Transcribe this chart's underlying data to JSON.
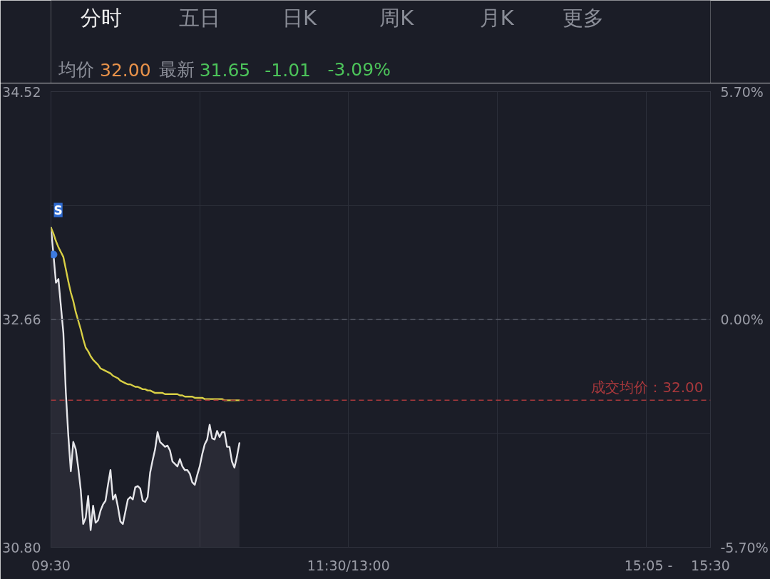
{
  "chart_data": {
    "type": "line",
    "categories": [
      "09:30",
      null,
      null,
      null,
      null,
      null,
      null,
      null,
      null,
      null,
      null,
      null,
      null,
      null,
      null,
      null,
      null,
      null,
      null,
      null,
      null,
      null,
      null,
      null,
      null,
      null,
      null,
      null,
      null,
      null,
      null,
      null,
      null,
      null,
      null,
      null,
      null,
      null,
      null,
      null,
      null,
      null,
      null,
      null,
      null,
      null,
      null,
      null,
      null,
      null,
      null,
      null,
      null,
      null,
      null,
      null,
      null,
      null,
      null,
      null,
      null,
      null,
      null,
      null,
      null,
      null,
      null,
      null,
      null,
      null,
      null,
      null,
      null,
      null,
      null,
      null,
      null,
      null,
      null,
      null,
      null,
      null,
      null,
      null,
      null,
      null,
      null,
      null,
      null,
      null,
      null,
      null,
      null,
      null,
      null,
      null,
      null,
      null,
      null,
      null,
      null,
      null,
      null,
      null,
      null,
      null,
      null,
      null,
      null,
      null,
      null,
      null,
      null,
      null,
      null,
      null,
      null,
      null,
      null,
      null,
      "11:30/13:00",
      null,
      null,
      null,
      null,
      null,
      null,
      null,
      null,
      null,
      null,
      null,
      null,
      null,
      null,
      null,
      null,
      null,
      null,
      null,
      null,
      null,
      null,
      null,
      null,
      null,
      null,
      null,
      null,
      null,
      null,
      null,
      null,
      null,
      null,
      null,
      null,
      null,
      null,
      null,
      null,
      null,
      null,
      null,
      null,
      null,
      null,
      null,
      null,
      null,
      null,
      null,
      null,
      null,
      null,
      null,
      null,
      null,
      null,
      null,
      null,
      null,
      null,
      null,
      null,
      null,
      null,
      null,
      null,
      null,
      null,
      null,
      null,
      null,
      null,
      null,
      null,
      null,
      null,
      null,
      null,
      null,
      null,
      null,
      null,
      null,
      null,
      null,
      null,
      null,
      null,
      null,
      null,
      null,
      null,
      null,
      null,
      null,
      null,
      null,
      null,
      null,
      null,
      null,
      null,
      null,
      null,
      null,
      null,
      null,
      null,
      null,
      null,
      null,
      null,
      null,
      null,
      null,
      null,
      null,
      null,
      "15:05 -",
      null,
      null,
      null,
      null,
      null,
      null,
      null,
      null,
      null,
      null,
      null,
      null,
      null,
      null,
      null,
      null,
      null,
      null,
      null,
      null,
      null,
      null,
      null,
      null,
      "15:30"
    ],
    "series": [
      {
        "type": "area",
        "color": "#e6e6ea",
        "values": [
          33.41,
          33.19,
          32.96,
          32.99,
          32.77,
          32.55,
          32.06,
          31.71,
          31.42,
          31.66,
          31.6,
          31.45,
          31.27,
          30.99,
          31.04,
          31.22,
          30.94,
          31.14,
          31.0,
          31.02,
          31.1,
          31.15,
          31.18,
          31.31,
          31.43,
          31.19,
          31.23,
          31.13,
          31.01,
          30.99,
          31.09,
          31.19,
          31.21,
          31.19,
          31.29,
          31.3,
          31.28,
          31.18,
          31.17,
          31.21,
          31.41,
          31.51,
          31.6,
          31.74,
          31.66,
          31.64,
          31.62,
          31.63,
          31.59,
          31.5,
          31.48,
          31.46,
          31.52,
          31.46,
          31.43,
          31.43,
          31.4,
          31.33,
          31.31,
          31.39,
          31.46,
          31.56,
          31.64,
          31.68,
          31.8,
          31.69,
          31.68,
          31.75,
          31.7,
          31.74,
          31.74,
          31.62,
          31.62,
          31.5,
          31.45,
          31.54,
          31.65,
          null,
          null,
          null,
          null,
          null,
          null,
          null,
          null,
          null,
          null,
          null,
          null,
          null,
          null,
          null,
          null,
          null,
          null,
          null,
          null,
          null,
          null,
          null,
          null,
          null,
          null,
          null,
          null,
          null,
          null,
          null,
          null,
          null,
          null,
          null,
          null,
          null,
          null,
          null,
          null,
          null,
          null,
          null,
          null,
          null,
          null,
          null,
          null,
          null,
          null,
          null,
          null,
          null,
          null,
          null,
          null,
          null,
          null,
          null,
          null,
          null,
          null,
          null,
          null,
          null,
          null,
          null,
          null,
          null,
          null,
          null,
          null,
          null,
          null,
          null,
          null,
          null,
          null,
          null,
          null,
          null,
          null,
          null,
          null,
          null,
          null,
          null,
          null,
          null,
          null,
          null,
          null,
          null,
          null,
          null,
          null,
          null,
          null,
          null,
          null,
          null,
          null,
          null,
          null,
          null,
          null,
          null,
          null,
          null,
          null,
          null,
          null,
          null,
          null,
          null,
          null,
          null,
          null,
          null,
          null,
          null,
          null,
          null,
          null,
          null,
          null,
          null,
          null,
          null,
          null,
          null,
          null,
          null,
          null,
          null,
          null,
          null,
          null,
          null,
          null,
          null,
          null,
          null,
          null,
          null,
          null,
          null,
          null,
          null,
          null,
          null,
          null,
          null,
          null,
          null,
          null,
          null,
          null,
          null,
          null,
          null,
          null,
          null,
          null,
          null,
          null,
          null,
          null,
          null,
          null,
          null,
          null,
          null,
          null,
          null,
          null,
          null,
          null,
          null,
          null,
          null,
          null,
          null,
          null,
          null,
          null,
          null,
          null,
          null,
          null
        ]
      },
      {
        "color": "#d8cf45",
        "values": [
          33.41,
          33.36,
          33.3,
          33.25,
          33.21,
          33.17,
          33.07,
          32.97,
          32.88,
          32.81,
          32.72,
          32.65,
          32.58,
          32.5,
          32.43,
          32.4,
          32.36,
          32.33,
          32.31,
          32.29,
          32.26,
          32.25,
          32.24,
          32.23,
          32.22,
          32.2,
          32.19,
          32.18,
          32.16,
          32.15,
          32.14,
          32.13,
          32.13,
          32.12,
          32.11,
          32.11,
          32.1,
          32.09,
          32.09,
          32.08,
          32.08,
          32.07,
          32.06,
          32.06,
          32.06,
          32.06,
          32.05,
          32.05,
          32.05,
          32.05,
          32.05,
          32.05,
          32.04,
          32.04,
          32.03,
          32.03,
          32.03,
          32.03,
          32.02,
          32.02,
          32.02,
          32.02,
          32.01,
          32.01,
          32.01,
          32.01,
          32.01,
          32.01,
          32.01,
          32.01,
          32.0,
          32.0,
          32.0,
          32.0,
          32.0,
          32.0,
          32.0,
          null,
          null,
          null,
          null,
          null,
          null,
          null,
          null,
          null,
          null,
          null,
          null,
          null,
          null,
          null,
          null,
          null,
          null,
          null,
          null,
          null,
          null,
          null,
          null,
          null,
          null,
          null,
          null,
          null,
          null,
          null,
          null,
          null,
          null,
          null,
          null,
          null,
          null,
          null,
          null,
          null,
          null,
          null,
          null,
          null,
          null,
          null,
          null,
          null,
          null,
          null,
          null,
          null,
          null,
          null,
          null,
          null,
          null,
          null,
          null,
          null,
          null,
          null,
          null,
          null,
          null,
          null,
          null,
          null,
          null,
          null,
          null,
          null,
          null,
          null,
          null,
          null,
          null,
          null,
          null,
          null,
          null,
          null,
          null,
          null,
          null,
          null,
          null,
          null,
          null,
          null,
          null,
          null,
          null,
          null,
          null,
          null,
          null,
          null,
          null,
          null,
          null,
          null,
          null,
          null,
          null,
          null,
          null,
          null,
          null,
          null,
          null,
          null,
          null,
          null,
          null,
          null,
          null,
          null,
          null,
          null,
          null,
          null,
          null,
          null,
          null,
          null,
          null,
          null,
          null,
          null,
          null,
          null,
          null,
          null,
          null,
          null,
          null,
          null,
          null,
          null,
          null,
          null,
          null,
          null,
          null,
          null,
          null,
          null,
          null,
          null,
          null,
          null,
          null,
          null,
          null,
          null,
          null,
          null,
          null,
          null,
          null,
          null,
          null,
          null,
          null,
          null,
          null,
          null,
          null,
          null,
          null,
          null,
          null,
          null,
          null,
          null,
          null,
          null,
          null,
          null,
          null,
          null,
          null,
          null,
          null,
          null,
          null,
          null,
          null
        ]
      },
      {
        "type": "scatter",
        "color": "#3d7be0",
        "values": [
          null,
          33.19,
          null,
          null,
          null,
          null,
          null,
          null,
          null,
          null,
          null,
          null,
          null,
          null,
          null,
          null,
          null,
          null,
          null,
          null,
          null,
          null,
          null,
          null,
          null,
          null,
          null,
          null,
          null,
          null,
          null,
          null,
          null,
          null,
          null,
          null,
          null,
          null,
          null,
          null,
          null,
          null,
          null,
          null,
          null,
          null,
          null,
          null,
          null,
          null,
          null,
          null,
          null,
          null,
          null,
          null,
          null,
          null,
          null,
          null,
          null,
          null,
          null,
          null,
          null,
          null,
          null,
          null,
          null,
          null,
          null,
          null,
          null,
          null,
          null,
          null,
          null,
          null,
          null,
          null,
          null,
          null,
          null,
          null,
          null,
          null,
          null,
          null,
          null,
          null,
          null,
          null,
          null,
          null,
          null,
          null,
          null,
          null,
          null,
          null,
          null,
          null,
          null,
          null,
          null,
          null,
          null,
          null,
          null,
          null,
          null,
          null,
          null,
          null,
          null,
          null,
          null,
          null,
          null,
          null,
          null,
          null,
          null,
          null,
          null,
          null,
          null,
          null,
          null,
          null,
          null,
          null,
          null,
          null,
          null,
          null,
          null,
          null,
          null,
          null,
          null,
          null,
          null,
          null,
          null,
          null,
          null,
          null,
          null,
          null,
          null,
          null,
          null,
          null,
          null,
          null,
          null,
          null,
          null,
          null,
          null,
          null,
          null,
          null,
          null,
          null,
          null,
          null,
          null,
          null,
          null,
          null,
          null,
          null,
          null,
          null,
          null,
          null,
          null,
          null,
          null,
          null,
          null,
          null,
          null,
          null,
          null,
          null,
          null,
          null,
          null,
          null,
          null,
          null,
          null,
          null,
          null,
          null,
          null,
          null,
          null,
          null,
          null,
          null,
          null,
          null,
          null,
          null,
          null,
          null,
          null,
          null,
          null,
          null,
          null,
          null,
          null,
          null,
          null,
          null,
          null,
          null,
          null,
          null,
          null,
          null,
          null,
          null,
          null,
          null,
          null,
          null,
          null,
          null,
          null,
          null,
          null,
          null,
          null,
          null,
          null,
          null,
          null,
          null,
          null,
          null,
          null,
          null,
          null,
          null,
          null,
          null,
          null,
          null,
          null,
          null,
          null,
          null,
          null,
          null,
          null,
          null,
          null,
          null,
          null,
          null,
          null
        ]
      }
    ],
    "ylim": [
      30.8,
      34.52
    ],
    "yticks": [
      {
        "value": 30.8,
        "label": "30.80"
      },
      {
        "value": 31.73,
        "label": null
      },
      32.66,
      {
        "value": 33.59,
        "label": null
      },
      34.52
    ],
    "y2lim": [
      -5.7,
      5.7
    ],
    "y2ticks": [
      {
        "value": -5.7,
        "label": "-5.70%"
      },
      {
        "value": 0,
        "label": "0.00%"
      },
      {
        "value": 5.7,
        "label": "5.70%"
      }
    ],
    "ref_lines": [
      {
        "axis": "y",
        "value": 32.0,
        "label": "成交均价：32.00",
        "color": "#a8383c",
        "line_style": "dashed"
      },
      {
        "axis": "y2",
        "value": 0,
        "color": "#565a66",
        "line_style": "dashed"
      }
    ],
    "annotations": [
      "分时",
      "五日",
      "日K",
      "周K",
      "月K",
      "更多",
      "均价",
      "32.00",
      "最新",
      "31.65",
      "-1.01",
      "-3.09%",
      "S"
    ],
    "grid": true
  }
}
